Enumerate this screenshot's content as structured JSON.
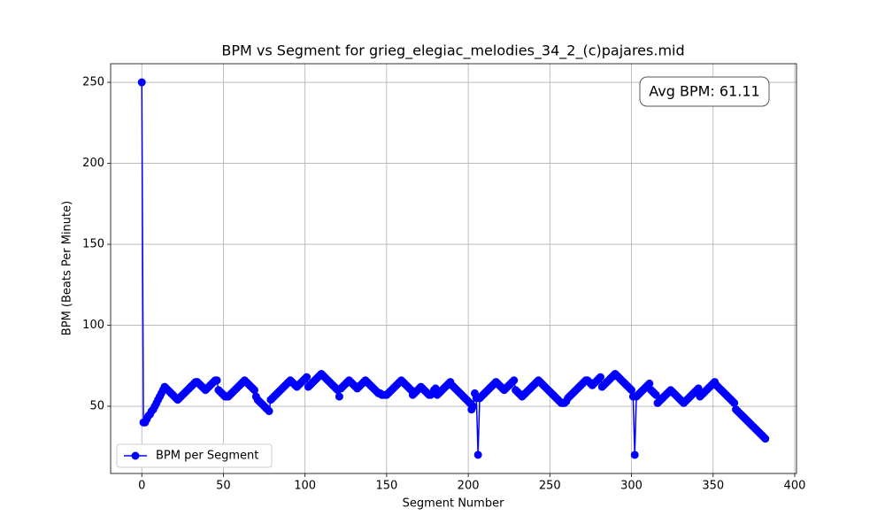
{
  "chart_data": {
    "type": "line",
    "title": "BPM vs Segment for grieg_elegiac_melodies_34_2_(c)pajares.mid",
    "xlabel": "Segment Number",
    "ylabel": "BPM (Beats Per Minute)",
    "annotation": "Avg BPM: 61.11",
    "grid": true,
    "legend": "lower left",
    "xlim": [
      -19.1,
      401.1
    ],
    "ylim": [
      8.5,
      261.5
    ],
    "xticks": [
      0,
      50,
      100,
      150,
      200,
      250,
      300,
      350,
      400
    ],
    "yticks": [
      50,
      100,
      150,
      200,
      250
    ],
    "x": [
      0,
      1,
      2,
      3,
      4,
      5,
      6,
      7,
      8,
      9,
      10,
      11,
      12,
      13,
      14,
      15,
      16,
      17,
      18,
      19,
      20,
      21,
      22,
      23,
      24,
      25,
      26,
      27,
      28,
      29,
      30,
      31,
      32,
      33,
      34,
      35,
      36,
      37,
      38,
      39,
      40,
      41,
      42,
      43,
      44,
      45,
      46,
      47,
      48,
      49,
      50,
      51,
      52,
      53,
      54,
      55,
      56,
      57,
      58,
      59,
      60,
      61,
      62,
      63,
      64,
      65,
      66,
      67,
      68,
      69,
      70,
      71,
      72,
      73,
      74,
      75,
      76,
      77,
      78,
      79,
      80,
      81,
      82,
      83,
      84,
      85,
      86,
      87,
      88,
      89,
      90,
      91,
      92,
      93,
      94,
      95,
      96,
      97,
      98,
      99,
      100,
      101,
      102,
      103,
      104,
      105,
      106,
      107,
      108,
      109,
      110,
      111,
      112,
      113,
      114,
      115,
      116,
      117,
      118,
      119,
      120,
      121,
      122,
      123,
      124,
      125,
      126,
      127,
      128,
      129,
      130,
      131,
      132,
      133,
      134,
      135,
      136,
      137,
      138,
      139,
      140,
      141,
      142,
      143,
      144,
      145,
      146,
      147,
      148,
      149,
      150,
      151,
      152,
      153,
      154,
      155,
      156,
      157,
      158,
      159,
      160,
      161,
      162,
      163,
      164,
      165,
      166,
      167,
      168,
      169,
      170,
      171,
      172,
      173,
      174,
      175,
      176,
      177,
      178,
      179,
      180,
      181,
      182,
      183,
      184,
      185,
      186,
      187,
      188,
      189,
      190,
      191,
      192,
      193,
      194,
      195,
      196,
      197,
      198,
      199,
      200,
      201,
      202,
      203,
      204,
      205,
      206,
      207,
      208,
      209,
      210,
      211,
      212,
      213,
      214,
      215,
      216,
      217,
      218,
      219,
      220,
      221,
      222,
      223,
      224,
      225,
      226,
      227,
      228,
      229,
      230,
      231,
      232,
      233,
      234,
      235,
      236,
      237,
      238,
      239,
      240,
      241,
      242,
      243,
      244,
      245,
      246,
      247,
      248,
      249,
      250,
      251,
      252,
      253,
      254,
      255,
      256,
      257,
      258,
      259,
      260,
      261,
      262,
      263,
      264,
      265,
      266,
      267,
      268,
      269,
      270,
      271,
      272,
      273,
      274,
      275,
      276,
      277,
      278,
      279,
      280,
      281,
      282,
      283,
      284,
      285,
      286,
      287,
      288,
      289,
      290,
      291,
      292,
      293,
      294,
      295,
      296,
      297,
      298,
      299,
      300,
      301,
      302,
      303,
      304,
      305,
      306,
      307,
      308,
      309,
      310,
      311,
      312,
      313,
      314,
      315,
      316,
      317,
      318,
      319,
      320,
      321,
      322,
      323,
      324,
      325,
      326,
      327,
      328,
      329,
      330,
      331,
      332,
      333,
      334,
      335,
      336,
      337,
      338,
      339,
      340,
      341,
      342,
      343,
      344,
      345,
      346,
      347,
      348,
      349,
      350,
      351,
      352,
      353,
      354,
      355,
      356,
      357,
      358,
      359,
      360,
      361,
      362,
      363,
      364,
      365,
      366,
      367,
      368,
      369,
      370,
      371,
      372,
      373,
      374,
      375,
      376,
      377,
      378,
      379,
      380,
      381,
      382
    ],
    "series": [
      {
        "name": "BPM per Segment",
        "color": "#0000ff",
        "values": [
          250,
          40,
          40,
          42,
          44,
          45,
          47,
          48,
          50,
          52,
          54,
          56,
          58,
          60,
          62,
          61,
          60,
          59,
          58,
          57,
          56,
          55,
          54,
          55,
          56,
          57,
          58,
          59,
          60,
          61,
          62,
          63,
          64,
          65,
          65,
          64,
          63,
          62,
          61,
          60,
          61,
          62,
          63,
          64,
          65,
          66,
          66,
          60,
          59,
          58,
          57,
          56,
          56,
          56,
          57,
          58,
          59,
          60,
          61,
          62,
          63,
          64,
          65,
          66,
          65,
          64,
          63,
          62,
          61,
          60,
          56,
          54,
          53,
          52,
          51,
          50,
          49,
          48,
          47,
          54,
          55,
          56,
          57,
          58,
          59,
          60,
          61,
          62,
          63,
          64,
          65,
          66,
          65,
          64,
          63,
          62,
          63,
          64,
          65,
          66,
          67,
          68,
          62,
          63,
          64,
          65,
          66,
          67,
          68,
          69,
          70,
          69,
          68,
          67,
          66,
          65,
          64,
          63,
          62,
          61,
          60,
          56,
          61,
          62,
          63,
          64,
          65,
          66,
          65,
          64,
          63,
          62,
          61,
          62,
          63,
          64,
          65,
          66,
          65,
          64,
          63,
          62,
          61,
          60,
          59,
          58,
          58,
          57,
          57,
          57,
          57,
          58,
          59,
          60,
          61,
          62,
          63,
          64,
          65,
          66,
          65,
          64,
          63,
          62,
          61,
          60,
          57,
          58,
          59,
          60,
          61,
          62,
          61,
          60,
          59,
          58,
          57,
          57,
          58,
          60,
          61,
          57,
          58,
          59,
          60,
          61,
          62,
          63,
          64,
          65,
          63,
          62,
          61,
          60,
          59,
          58,
          57,
          56,
          55,
          54,
          53,
          52,
          48,
          50,
          58,
          55,
          20,
          55,
          56,
          57,
          58,
          59,
          60,
          61,
          62,
          63,
          64,
          65,
          64,
          63,
          62,
          61,
          60,
          61,
          62,
          63,
          64,
          65,
          66,
          60,
          59,
          58,
          57,
          56,
          57,
          58,
          59,
          60,
          61,
          62,
          63,
          64,
          65,
          66,
          65,
          64,
          63,
          62,
          61,
          60,
          59,
          58,
          57,
          56,
          55,
          54,
          53,
          52,
          52,
          52,
          53,
          55,
          56,
          57,
          58,
          59,
          60,
          61,
          62,
          63,
          64,
          65,
          66,
          66,
          65,
          64,
          63,
          64,
          65,
          66,
          67,
          68,
          62,
          63,
          64,
          65,
          66,
          67,
          68,
          69,
          70,
          69,
          68,
          67,
          66,
          65,
          64,
          63,
          62,
          61,
          60,
          56,
          20,
          56,
          57,
          58,
          59,
          60,
          61,
          62,
          63,
          64,
          60,
          59,
          58,
          57,
          52,
          53,
          54,
          55,
          56,
          57,
          58,
          59,
          60,
          59,
          58,
          57,
          56,
          55,
          54,
          53,
          52,
          53,
          54,
          55,
          56,
          57,
          58,
          59,
          60,
          61,
          56,
          57,
          58,
          59,
          60,
          61,
          62,
          63,
          64,
          65,
          63,
          62,
          61,
          60,
          59,
          58,
          57,
          56,
          55,
          54,
          53,
          52,
          48,
          47,
          46,
          45,
          44,
          43,
          42,
          41,
          40,
          39,
          38,
          37,
          36,
          35,
          34,
          33,
          32,
          31,
          30
        ]
      }
    ]
  }
}
